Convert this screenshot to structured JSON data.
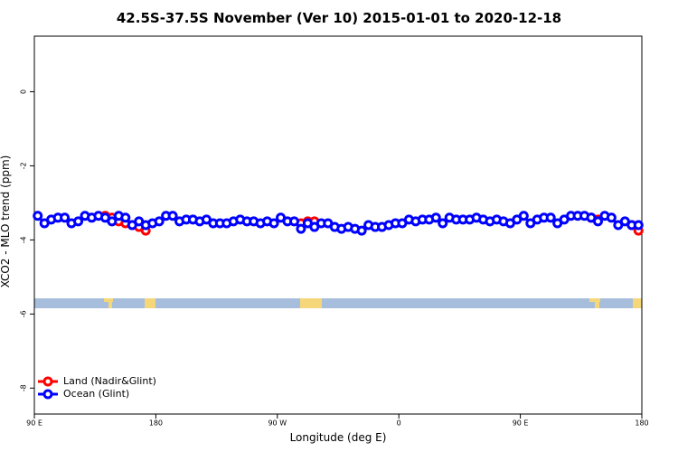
{
  "chart_data": {
    "type": "line",
    "title": "42.5S-37.5S November (Ver 10)   2015-01-01 to 2020-12-18",
    "x_label": "Longitude (deg E)",
    "y_label": "XCO2 - MLO trend (ppm)",
    "x": [
      92.5,
      97.5,
      102.5,
      107.5,
      112.5,
      117.5,
      122.5,
      127.5,
      132.5,
      137.5,
      142.5,
      147.5,
      152.5,
      157.5,
      162.5,
      167.5,
      172.5,
      177.5,
      182.5,
      187.5,
      192.5,
      197.5,
      202.5,
      207.5,
      212.5,
      217.5,
      222.5,
      227.5,
      232.5,
      237.5,
      242.5,
      247.5,
      252.5,
      257.5,
      262.5,
      267.5,
      272.5,
      277.5,
      282.5,
      287.5,
      292.5,
      297.5,
      302.5,
      307.5,
      312.5,
      317.5,
      322.5,
      327.5,
      332.5,
      337.5,
      342.5,
      347.5,
      352.5,
      357.5,
      362.5,
      367.5,
      372.5,
      377.5,
      382.5,
      387.5,
      392.5,
      397.5,
      402.5,
      407.5,
      412.5,
      417.5,
      422.5,
      427.5,
      432.5,
      437.5,
      442.5,
      447.5,
      452.5,
      457.5,
      462.5,
      467.5,
      472.5,
      477.5,
      482.5,
      487.5,
      492.5,
      497.5,
      502.5,
      507.5,
      512.5,
      517.5,
      522.5,
      527.5,
      532.5,
      537.5
    ],
    "series": [
      {
        "name": "Land (Nadir&Glint)",
        "color": "#ff0000",
        "values": [
          null,
          null,
          null,
          null,
          null,
          null,
          null,
          null,
          null,
          null,
          -3.35,
          -3.4,
          -3.5,
          -3.55,
          -3.6,
          -3.65,
          -3.75,
          null,
          null,
          null,
          null,
          null,
          null,
          null,
          null,
          null,
          null,
          null,
          null,
          null,
          null,
          null,
          null,
          null,
          null,
          null,
          null,
          null,
          null,
          -3.55,
          -3.5,
          -3.5,
          null,
          null,
          null,
          null,
          null,
          null,
          null,
          null,
          null,
          null,
          null,
          null,
          null,
          null,
          null,
          null,
          null,
          null,
          null,
          null,
          null,
          null,
          null,
          null,
          null,
          null,
          null,
          null,
          null,
          null,
          null,
          null,
          null,
          null,
          null,
          null,
          null,
          null,
          null,
          null,
          -3.4,
          -3.45,
          null,
          null,
          null,
          null,
          -3.6,
          -3.75
        ]
      },
      {
        "name": "Ocean (Glint)",
        "color": "#0000ff",
        "values": [
          -3.35,
          -3.55,
          -3.45,
          -3.4,
          -3.4,
          -3.55,
          -3.5,
          -3.35,
          -3.4,
          -3.35,
          -3.4,
          -3.5,
          -3.35,
          -3.4,
          -3.6,
          -3.5,
          -3.6,
          -3.55,
          -3.5,
          -3.35,
          -3.35,
          -3.5,
          -3.45,
          -3.45,
          -3.5,
          -3.45,
          -3.55,
          -3.55,
          -3.55,
          -3.5,
          -3.45,
          -3.5,
          -3.5,
          -3.55,
          -3.5,
          -3.55,
          -3.4,
          -3.5,
          -3.5,
          -3.7,
          -3.55,
          -3.65,
          -3.55,
          -3.55,
          -3.65,
          -3.7,
          -3.65,
          -3.7,
          -3.75,
          -3.6,
          -3.65,
          -3.65,
          -3.6,
          -3.55,
          -3.55,
          -3.45,
          -3.5,
          -3.45,
          -3.45,
          -3.4,
          -3.55,
          -3.4,
          -3.45,
          -3.45,
          -3.45,
          -3.4,
          -3.45,
          -3.5,
          -3.45,
          -3.5,
          -3.55,
          -3.45,
          -3.35,
          -3.55,
          -3.45,
          -3.4,
          -3.4,
          -3.55,
          -3.45,
          -3.35,
          -3.35,
          -3.35,
          -3.4,
          -3.5,
          -3.35,
          -3.4,
          -3.6,
          -3.5,
          -3.6,
          -3.6
        ]
      }
    ],
    "xlim": [
      90,
      540
    ],
    "xticks": [
      {
        "value": 90,
        "label": "90 E"
      },
      180,
      {
        "value": 270,
        "label": "90 W"
      },
      {
        "value": 360,
        "label": "0"
      },
      {
        "value": 450,
        "label": "90 E"
      },
      {
        "value": 540,
        "label": "180"
      }
    ],
    "ylim": [
      -8.7,
      1.5
    ],
    "yticks": [
      -8,
      -6,
      -4,
      -2,
      0
    ],
    "legend": "bottom-left",
    "grid": false
  }
}
